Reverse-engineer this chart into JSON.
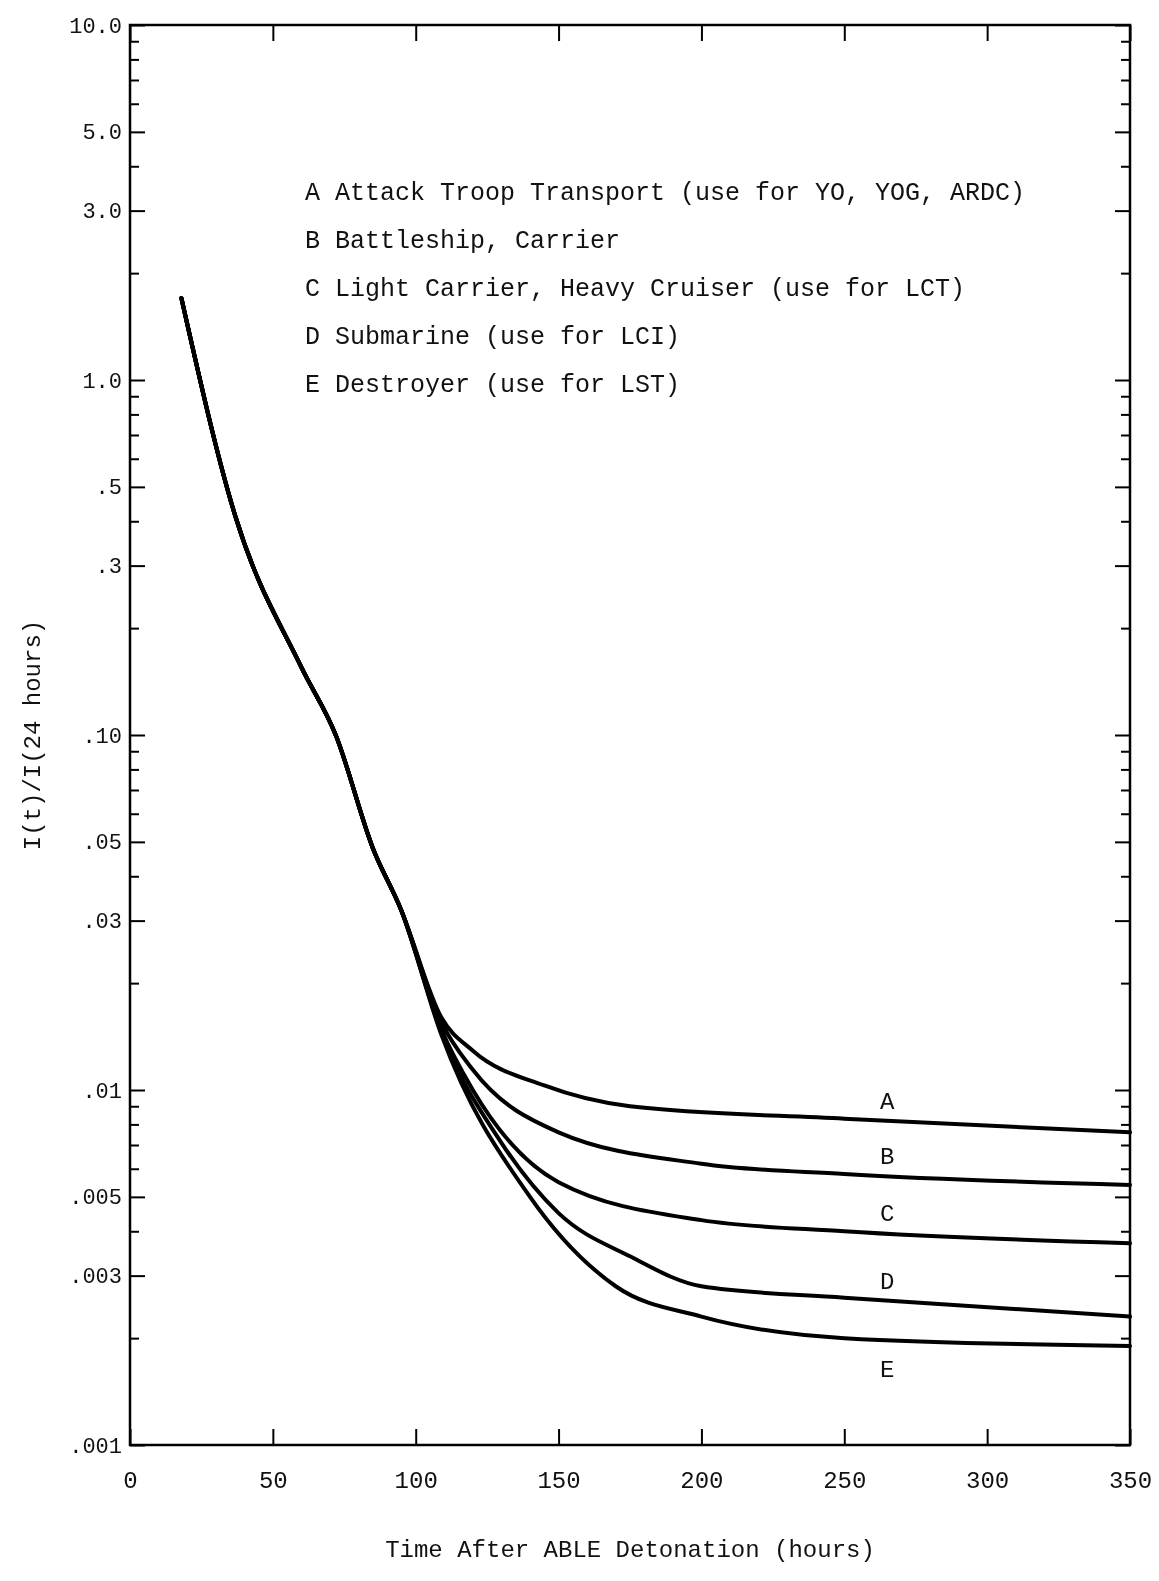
{
  "chart_data": {
    "type": "line",
    "xlabel": "Time After ABLE Detonation (hours)",
    "ylabel": "I(t)/I(24 hours)",
    "log": "y",
    "xlim": [
      0,
      350
    ],
    "ylim": [
      0.001,
      10
    ],
    "xticks": [
      0,
      50,
      100,
      150,
      200,
      250,
      300,
      350
    ],
    "yticks": [
      {
        "value": 0.001,
        "label": ".001"
      },
      {
        "value": 0.002,
        "label": null
      },
      {
        "value": 0.003,
        "label": ".003"
      },
      {
        "value": 0.004,
        "label": null
      },
      {
        "value": 0.005,
        "label": ".005"
      },
      {
        "value": 0.006,
        "label": null
      },
      {
        "value": 0.007,
        "label": null
      },
      {
        "value": 0.008,
        "label": null
      },
      {
        "value": 0.009,
        "label": null
      },
      {
        "value": 0.01,
        "label": ".01"
      },
      {
        "value": 0.02,
        "label": null
      },
      {
        "value": 0.03,
        "label": ".03"
      },
      {
        "value": 0.04,
        "label": null
      },
      {
        "value": 0.05,
        "label": ".05"
      },
      {
        "value": 0.06,
        "label": null
      },
      {
        "value": 0.07,
        "label": null
      },
      {
        "value": 0.08,
        "label": null
      },
      {
        "value": 0.09,
        "label": null
      },
      {
        "value": 0.1,
        "label": ".10"
      },
      {
        "value": 0.2,
        "label": null
      },
      {
        "value": 0.3,
        "label": ".3"
      },
      {
        "value": 0.4,
        "label": null
      },
      {
        "value": 0.5,
        "label": ".5"
      },
      {
        "value": 0.6,
        "label": null
      },
      {
        "value": 0.7,
        "label": null
      },
      {
        "value": 0.8,
        "label": null
      },
      {
        "value": 0.9,
        "label": null
      },
      {
        "value": 1,
        "label": "1.0"
      },
      {
        "value": 2,
        "label": null
      },
      {
        "value": 3,
        "label": "3.0"
      },
      {
        "value": 4,
        "label": null
      },
      {
        "value": 5,
        "label": "5.0"
      },
      {
        "value": 6,
        "label": null
      },
      {
        "value": 7,
        "label": null
      },
      {
        "value": 8,
        "label": null
      },
      {
        "value": 9,
        "label": null
      },
      {
        "value": 10,
        "label": "10.0"
      }
    ],
    "grid": false,
    "marker": "none",
    "line_style": "solid",
    "annotations": [
      "A Attack Troop Transport (use for YO, YOG, ARDC)",
      "B Battleship, Carrier",
      "C Light Carrier, Heavy Cruiser (use for LCT)",
      "D Submarine (use for LCI)",
      "E Destroyer (use for LST)"
    ],
    "series": [
      {
        "name": "A",
        "color": "#000000",
        "x": [
          18,
          37,
          60,
          72,
          85,
          95,
          109,
          120,
          145,
          175,
          250,
          350
        ],
        "values": [
          1.7,
          0.41,
          0.155,
          0.1,
          0.048,
          0.032,
          0.016,
          0.0129,
          0.0103,
          0.009,
          0.0083,
          0.0076
        ]
      },
      {
        "name": "B",
        "color": "#000000",
        "x": [
          18,
          37,
          60,
          72,
          85,
          95,
          109,
          120,
          150,
          200,
          250,
          350
        ],
        "values": [
          1.7,
          0.41,
          0.155,
          0.1,
          0.048,
          0.032,
          0.0155,
          0.0114,
          0.0076,
          0.0062,
          0.0058,
          0.0054
        ]
      },
      {
        "name": "C",
        "color": "#000000",
        "x": [
          18,
          37,
          60,
          72,
          85,
          95,
          109,
          120,
          150,
          200,
          250,
          350
        ],
        "values": [
          1.7,
          0.41,
          0.155,
          0.1,
          0.048,
          0.032,
          0.0148,
          0.01,
          0.0055,
          0.0043,
          0.004,
          0.0037
        ]
      },
      {
        "name": "D",
        "color": "#000000",
        "x": [
          18,
          37,
          60,
          72,
          85,
          95,
          109,
          130,
          150,
          175,
          200,
          250,
          350
        ],
        "values": [
          1.7,
          0.41,
          0.155,
          0.1,
          0.048,
          0.032,
          0.0145,
          0.0071,
          0.0045,
          0.0034,
          0.0028,
          0.0026,
          0.0023
        ]
      },
      {
        "name": "E",
        "color": "#000000",
        "x": [
          18,
          37,
          60,
          72,
          85,
          95,
          109,
          140,
          170,
          200,
          250,
          350
        ],
        "values": [
          1.7,
          0.41,
          0.155,
          0.1,
          0.048,
          0.032,
          0.0143,
          0.005,
          0.0028,
          0.0023,
          0.002,
          0.0019
        ]
      }
    ]
  }
}
